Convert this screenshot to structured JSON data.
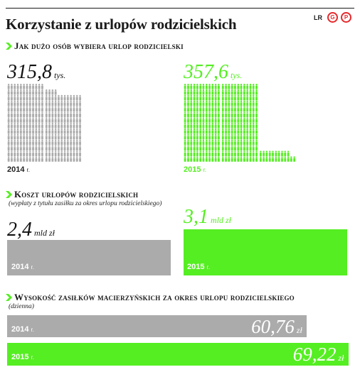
{
  "title": "Korzystanie z urlopów rodzicielskich",
  "brand": {
    "lr": "LR",
    "logo_letters": [
      "G",
      "P"
    ],
    "accent": "#e6282b"
  },
  "colors": {
    "gray": "#ababab",
    "green": "#55ee22"
  },
  "sections": [
    {
      "heading": "Jak dużo osób wybiera urlop rodzicielski",
      "subheading": "",
      "unit": "tys.",
      "items": [
        {
          "year": "2014",
          "year_suffix": "r.",
          "value_text": "315,8"
        },
        {
          "year": "2015",
          "year_suffix": "r.",
          "value_text": "357,6"
        }
      ]
    },
    {
      "heading": "Koszt urlopów rodzicielskich",
      "subheading": "(wypłaty z tytułu zasiłku za okres urlopu rodzicielskiego)",
      "unit": "mld zł",
      "items": [
        {
          "year": "2014",
          "year_suffix": "r.",
          "value_text": "2,4"
        },
        {
          "year": "2015",
          "year_suffix": "r.",
          "value_text": "3,1"
        }
      ]
    },
    {
      "heading": "Wysokość zasiłków macierzyńskich za okres urlopu rodzicielskiego",
      "subheading": "(dzienna)",
      "unit": "zł",
      "items": [
        {
          "year": "2014",
          "year_suffix": "r.",
          "value_text": "60,76"
        },
        {
          "year": "2015",
          "year_suffix": "r.",
          "value_text": "69,22"
        }
      ]
    }
  ],
  "chart_data": [
    {
      "type": "bar",
      "title": "Jak dużo osób wybiera urlop rodzicielski",
      "categories": [
        "2014 r.",
        "2015 r."
      ],
      "values": [
        315.8,
        357.6
      ],
      "unit": "tys.",
      "colors": [
        "#ababab",
        "#55ee22"
      ]
    },
    {
      "type": "bar",
      "title": "Koszt urlopów rodzicielskich",
      "subtitle": "(wypłaty z tytułu zasiłku za okres urlopu rodzicielskiego)",
      "categories": [
        "2014 r.",
        "2015 r."
      ],
      "values": [
        2.4,
        3.1
      ],
      "unit": "mld zł",
      "colors": [
        "#ababab",
        "#55ee22"
      ]
    },
    {
      "type": "bar",
      "orientation": "horizontal",
      "title": "Wysokość zasiłków macierzyńskich za okres urlopu rodzicielskiego",
      "subtitle": "(dzienna)",
      "categories": [
        "2014 r.",
        "2015 r."
      ],
      "values": [
        60.76,
        69.22
      ],
      "unit": "zł",
      "colors": [
        "#ababab",
        "#55ee22"
      ]
    }
  ]
}
